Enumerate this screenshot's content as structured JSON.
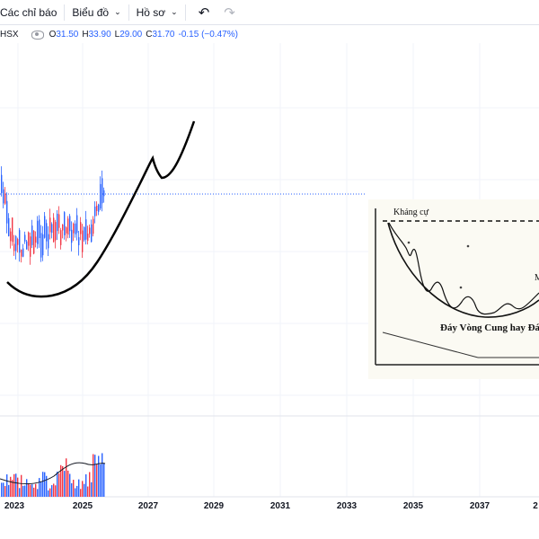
{
  "toolbar": {
    "indicators_label": "Các chỉ báo",
    "chart_label": "Biểu đồ",
    "profile_label": "Hồ sơ"
  },
  "legend": {
    "symbol": "HSX",
    "open_label": "O",
    "open": "31.50",
    "high_label": "H",
    "high": "33.90",
    "low_label": "L",
    "low": "29.00",
    "close_label": "C",
    "close": "31.70",
    "change": "-0.15 (−0.47%)"
  },
  "time_axis": [
    "2023",
    "2025",
    "2027",
    "2029",
    "2031",
    "2033",
    "2035",
    "2037",
    "2"
  ],
  "inset": {
    "resistance_label": "Kháng cự",
    "caption": "Đáy Vòng Cung hay Đá",
    "side_letter": "M"
  },
  "colors": {
    "up": "#2962ff",
    "down": "#f23645",
    "price_line": "#2962ff"
  }
}
